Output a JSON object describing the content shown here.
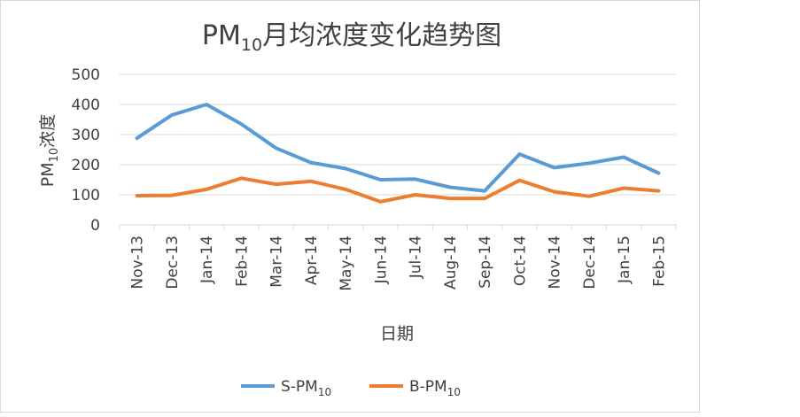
{
  "chart_data": {
    "type": "line",
    "title": "PM10月均浓度变化趋势图",
    "title_parts": {
      "prefix": "PM",
      "subscript": "10",
      "suffix": "月均浓度变化趋势图"
    },
    "xlabel": "日期",
    "ylabel": "PM10浓度",
    "ylabel_parts": {
      "prefix": "PM",
      "subscript": "10",
      "suffix": "浓度"
    },
    "ylim": [
      0,
      500
    ],
    "yticks": [
      "0",
      "100",
      "200",
      "300",
      "400",
      "500"
    ],
    "grid": true,
    "legend_position": "bottom",
    "categories": [
      "Nov-13",
      "Dec-13",
      "Jan-14",
      "Feb-14",
      "Mar-14",
      "Apr-14",
      "May-14",
      "Jun-14",
      "Jul-14",
      "Aug-14",
      "Sep-14",
      "Oct-14",
      "Nov-14",
      "Dec-14",
      "Jan-15",
      "Feb-15"
    ],
    "series": [
      {
        "name": "S-PM10",
        "name_prefix": "S-PM",
        "name_subscript": "10",
        "color": "#5b9bd5",
        "values": [
          288,
          365,
          400,
          335,
          255,
          207,
          187,
          150,
          152,
          125,
          113,
          235,
          190,
          205,
          225,
          172
        ]
      },
      {
        "name": "B-PM10",
        "name_prefix": "B-PM",
        "name_subscript": "10",
        "color": "#ed7d31",
        "values": [
          97,
          98,
          118,
          155,
          135,
          145,
          118,
          77,
          100,
          88,
          88,
          148,
          110,
          95,
          122,
          113
        ]
      }
    ]
  }
}
